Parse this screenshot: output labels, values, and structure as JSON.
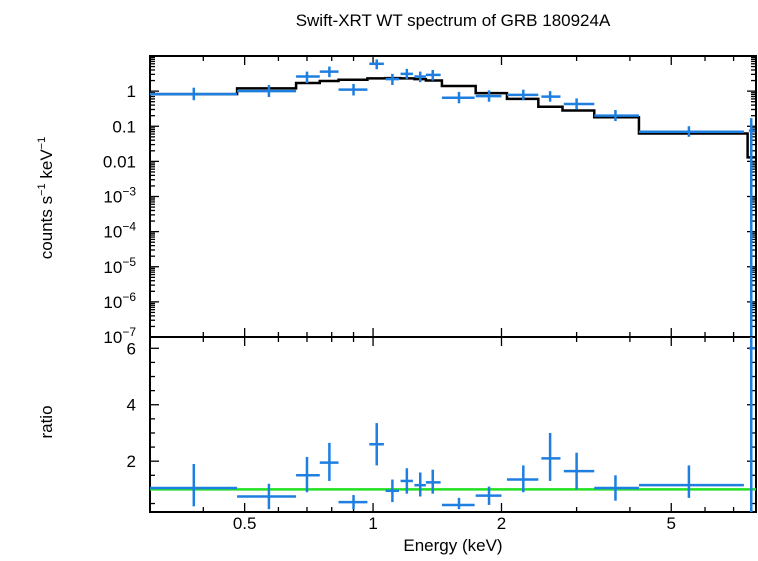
{
  "chart_data": [
    {
      "panel": "spectrum",
      "type": "scatter",
      "title": "Swift-XRT WT spectrum of GRB 180924A",
      "xlabel": "Energy (keV)",
      "ylabel_main": "counts s",
      "ylabel_sup1": "−1",
      "ylabel_mid": " keV",
      "ylabel_sup2": "−1",
      "xscale": "log",
      "yscale": "log",
      "xlim": [
        0.3,
        7.9
      ],
      "ylim": [
        1e-07,
        10
      ],
      "x_ticks": [
        {
          "value": 0.5,
          "label": "0.5"
        },
        {
          "value": 1,
          "label": "1"
        },
        {
          "value": 2,
          "label": "2"
        },
        {
          "value": 5,
          "label": "5"
        }
      ],
      "y_ticks": [
        {
          "value": 1,
          "label": "1"
        },
        {
          "value": 0.1,
          "label": "0.1"
        },
        {
          "value": 0.01,
          "label": "0.01"
        },
        {
          "value": 0.001,
          "base": "10",
          "exp": "−3"
        },
        {
          "value": 0.0001,
          "base": "10",
          "exp": "−4"
        },
        {
          "value": 1e-05,
          "base": "10",
          "exp": "−5"
        },
        {
          "value": 1e-06,
          "base": "10",
          "exp": "−6"
        },
        {
          "value": 1e-07,
          "base": "10",
          "exp": "−7"
        }
      ],
      "data_color": "#1e7fe0",
      "model_color": "#000000",
      "data_points": [
        {
          "x": 0.38,
          "xlo": 0.3,
          "xhi": 0.48,
          "y": 0.82,
          "ylo": 0.55,
          "yhi": 1.25
        },
        {
          "x": 0.57,
          "xlo": 0.48,
          "xhi": 0.66,
          "y": 1.0,
          "ylo": 0.68,
          "yhi": 1.5
        },
        {
          "x": 0.7,
          "xlo": 0.66,
          "xhi": 0.75,
          "y": 2.6,
          "ylo": 1.7,
          "yhi": 3.6
        },
        {
          "x": 0.79,
          "xlo": 0.75,
          "xhi": 0.83,
          "y": 3.6,
          "ylo": 2.5,
          "yhi": 5.0
        },
        {
          "x": 0.9,
          "xlo": 0.83,
          "xhi": 0.97,
          "y": 1.1,
          "ylo": 0.75,
          "yhi": 1.6
        },
        {
          "x": 1.02,
          "xlo": 0.98,
          "xhi": 1.06,
          "y": 6.0,
          "ylo": 4.2,
          "yhi": 8.0
        },
        {
          "x": 1.11,
          "xlo": 1.07,
          "xhi": 1.15,
          "y": 2.2,
          "ylo": 1.5,
          "yhi": 3.1
        },
        {
          "x": 1.2,
          "xlo": 1.16,
          "xhi": 1.24,
          "y": 3.1,
          "ylo": 2.2,
          "yhi": 4.3
        },
        {
          "x": 1.29,
          "xlo": 1.25,
          "xhi": 1.33,
          "y": 2.6,
          "ylo": 1.8,
          "yhi": 3.6
        },
        {
          "x": 1.38,
          "xlo": 1.33,
          "xhi": 1.44,
          "y": 2.9,
          "ylo": 2.0,
          "yhi": 4.0
        },
        {
          "x": 1.59,
          "xlo": 1.45,
          "xhi": 1.73,
          "y": 0.65,
          "ylo": 0.45,
          "yhi": 0.95
        },
        {
          "x": 1.87,
          "xlo": 1.74,
          "xhi": 2.0,
          "y": 0.72,
          "ylo": 0.5,
          "yhi": 1.05
        },
        {
          "x": 2.25,
          "xlo": 2.06,
          "xhi": 2.44,
          "y": 0.78,
          "ylo": 0.55,
          "yhi": 1.1
        },
        {
          "x": 2.6,
          "xlo": 2.48,
          "xhi": 2.75,
          "y": 0.7,
          "ylo": 0.5,
          "yhi": 1.0
        },
        {
          "x": 3.0,
          "xlo": 2.8,
          "xhi": 3.3,
          "y": 0.43,
          "ylo": 0.3,
          "yhi": 0.62
        },
        {
          "x": 3.7,
          "xlo": 3.3,
          "xhi": 4.2,
          "y": 0.2,
          "ylo": 0.14,
          "yhi": 0.29
        },
        {
          "x": 5.5,
          "xlo": 4.2,
          "xhi": 7.4,
          "y": 0.07,
          "ylo": 0.05,
          "yhi": 0.1
        },
        {
          "x": 7.7,
          "xlo": 7.6,
          "xhi": 7.85,
          "y": 0.075,
          "ylo": 1e-07,
          "yhi": 0.17
        }
      ],
      "model_steps": [
        {
          "x0": 0.3,
          "x1": 0.48,
          "y": 0.82
        },
        {
          "x0": 0.48,
          "x1": 0.66,
          "y": 1.2
        },
        {
          "x0": 0.66,
          "x1": 0.75,
          "y": 1.7
        },
        {
          "x0": 0.75,
          "x1": 0.83,
          "y": 1.95
        },
        {
          "x0": 0.83,
          "x1": 0.97,
          "y": 2.1
        },
        {
          "x0": 0.97,
          "x1": 1.07,
          "y": 2.3
        },
        {
          "x0": 1.07,
          "x1": 1.16,
          "y": 2.35
        },
        {
          "x0": 1.16,
          "x1": 1.25,
          "y": 2.3
        },
        {
          "x0": 1.25,
          "x1": 1.33,
          "y": 2.2
        },
        {
          "x0": 1.33,
          "x1": 1.45,
          "y": 2.0
        },
        {
          "x0": 1.45,
          "x1": 1.74,
          "y": 1.4
        },
        {
          "x0": 1.74,
          "x1": 2.06,
          "y": 0.88
        },
        {
          "x0": 2.06,
          "x1": 2.44,
          "y": 0.6
        },
        {
          "x0": 2.44,
          "x1": 2.78,
          "y": 0.36
        },
        {
          "x0": 2.78,
          "x1": 3.3,
          "y": 0.28
        },
        {
          "x0": 3.3,
          "x1": 4.2,
          "y": 0.18
        },
        {
          "x0": 4.2,
          "x1": 7.55,
          "y": 0.062
        },
        {
          "x0": 7.55,
          "x1": 7.9,
          "y": 0.013
        }
      ]
    },
    {
      "panel": "ratio",
      "type": "scatter",
      "ylabel": "ratio",
      "xscale": "log",
      "xlim": [
        0.3,
        7.9
      ],
      "ylim": [
        0.2,
        6.4
      ],
      "y_ticks": [
        {
          "value": 2,
          "label": "2"
        },
        {
          "value": 4,
          "label": "4"
        },
        {
          "value": 6,
          "label": "6"
        }
      ],
      "reference_line": {
        "y": 1.0,
        "color": "#22e022"
      },
      "data_points": [
        {
          "x": 0.38,
          "xlo": 0.3,
          "xhi": 0.48,
          "y": 1.05,
          "ylo": 0.4,
          "yhi": 1.9
        },
        {
          "x": 0.57,
          "xlo": 0.48,
          "xhi": 0.66,
          "y": 0.75,
          "ylo": 0.3,
          "yhi": 1.2
        },
        {
          "x": 0.7,
          "xlo": 0.66,
          "xhi": 0.75,
          "y": 1.5,
          "ylo": 0.9,
          "yhi": 2.15
        },
        {
          "x": 0.79,
          "xlo": 0.75,
          "xhi": 0.83,
          "y": 1.95,
          "ylo": 1.3,
          "yhi": 2.65
        },
        {
          "x": 0.9,
          "xlo": 0.83,
          "xhi": 0.97,
          "y": 0.55,
          "ylo": 0.3,
          "yhi": 0.8
        },
        {
          "x": 1.02,
          "xlo": 0.98,
          "xhi": 1.06,
          "y": 2.6,
          "ylo": 1.85,
          "yhi": 3.35
        },
        {
          "x": 1.11,
          "xlo": 1.07,
          "xhi": 1.15,
          "y": 0.95,
          "ylo": 0.55,
          "yhi": 1.35
        },
        {
          "x": 1.2,
          "xlo": 1.16,
          "xhi": 1.24,
          "y": 1.3,
          "ylo": 0.85,
          "yhi": 1.75
        },
        {
          "x": 1.29,
          "xlo": 1.25,
          "xhi": 1.33,
          "y": 1.15,
          "ylo": 0.75,
          "yhi": 1.6
        },
        {
          "x": 1.38,
          "xlo": 1.33,
          "xhi": 1.44,
          "y": 1.25,
          "ylo": 0.85,
          "yhi": 1.7
        },
        {
          "x": 1.59,
          "xlo": 1.45,
          "xhi": 1.73,
          "y": 0.45,
          "ylo": 0.3,
          "yhi": 0.7
        },
        {
          "x": 1.87,
          "xlo": 1.74,
          "xhi": 2.0,
          "y": 0.78,
          "ylo": 0.45,
          "yhi": 1.1
        },
        {
          "x": 2.25,
          "xlo": 2.06,
          "xhi": 2.44,
          "y": 1.35,
          "ylo": 0.9,
          "yhi": 1.85
        },
        {
          "x": 2.6,
          "xlo": 2.48,
          "xhi": 2.75,
          "y": 2.1,
          "ylo": 1.3,
          "yhi": 3.0
        },
        {
          "x": 3.0,
          "xlo": 2.8,
          "xhi": 3.3,
          "y": 1.65,
          "ylo": 1.0,
          "yhi": 2.3
        },
        {
          "x": 3.7,
          "xlo": 3.3,
          "xhi": 4.2,
          "y": 1.05,
          "ylo": 0.6,
          "yhi": 1.5
        },
        {
          "x": 5.5,
          "xlo": 4.2,
          "xhi": 7.4,
          "y": 1.15,
          "ylo": 0.7,
          "yhi": 1.85
        },
        {
          "x": 7.7,
          "xlo": 7.6,
          "xhi": 7.85,
          "y": 6.0,
          "ylo": 0.2,
          "yhi": 6.4
        }
      ]
    }
  ]
}
